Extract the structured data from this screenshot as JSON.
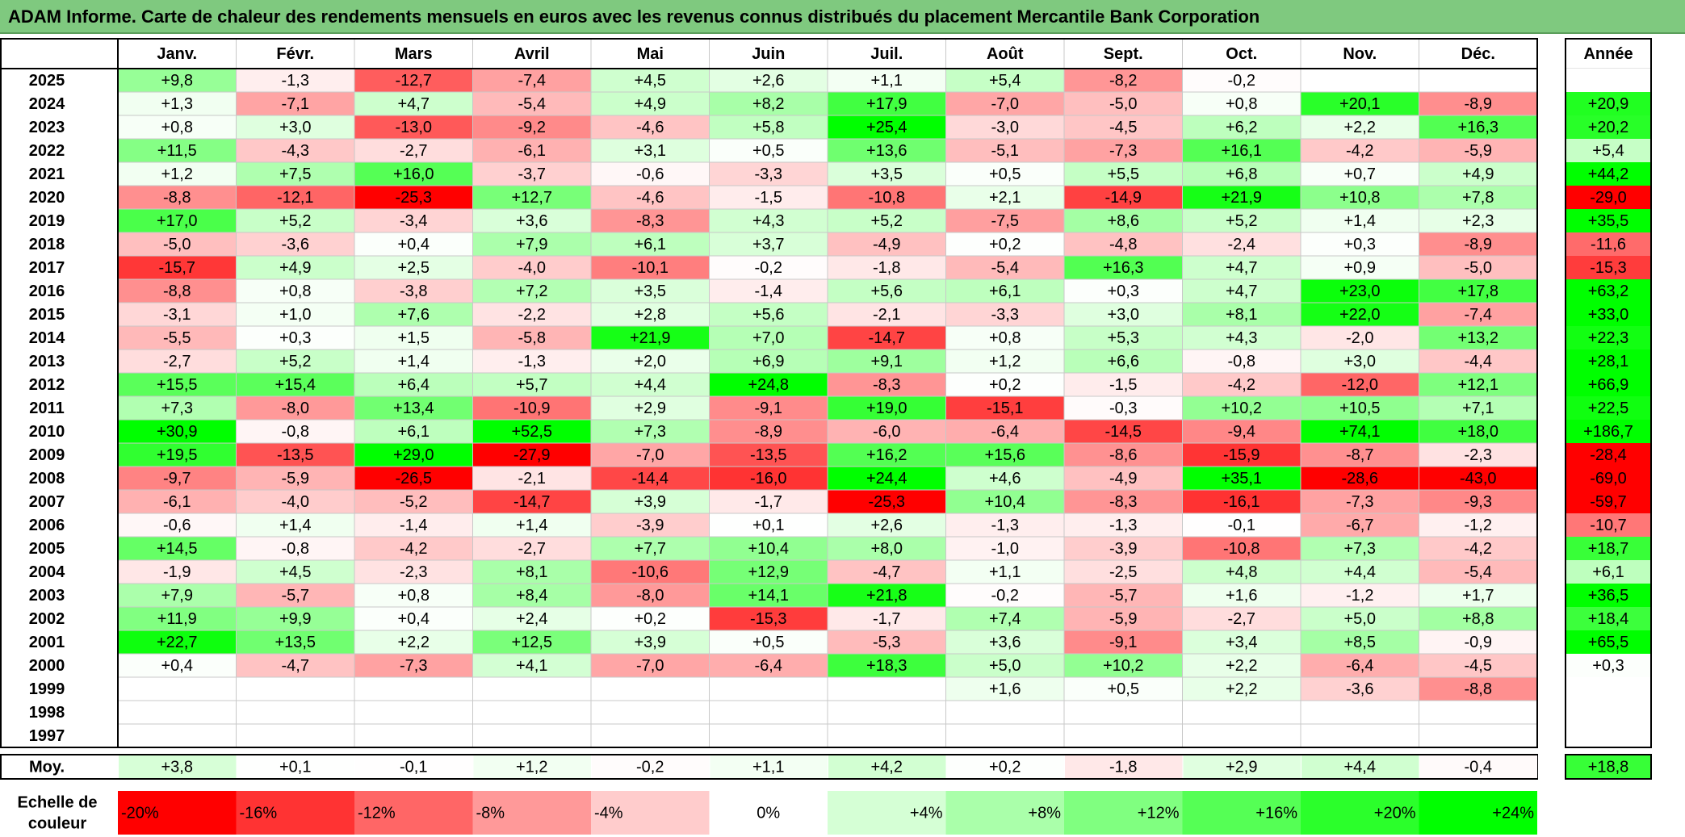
{
  "title": "ADAM Informe. Carte de chaleur des rendements mensuels en euros avec les revenus connus distribués du placement Mercantile Bank Corporation",
  "chart_data": {
    "type": "heatmap",
    "months": [
      "Janv.",
      "Févr.",
      "Mars",
      "Avril",
      "Mai",
      "Juin",
      "Juil.",
      "Août",
      "Sept.",
      "Oct.",
      "Nov.",
      "Déc."
    ],
    "annual_label": "Année",
    "years": [
      "2025",
      "2024",
      "2023",
      "2022",
      "2021",
      "2020",
      "2019",
      "2018",
      "2017",
      "2016",
      "2015",
      "2014",
      "2013",
      "2012",
      "2011",
      "2010",
      "2009",
      "2008",
      "2007",
      "2006",
      "2005",
      "2004",
      "2003",
      "2002",
      "2001",
      "2000",
      "1999",
      "1998",
      "1997"
    ],
    "values": [
      [
        "+9,8",
        "-1,3",
        "-12,7",
        "-7,4",
        "+4,5",
        "+2,6",
        "+1,1",
        "+5,4",
        "-8,2",
        "-0,2",
        "",
        ""
      ],
      [
        "+1,3",
        "-7,1",
        "+4,7",
        "-5,4",
        "+4,9",
        "+8,2",
        "+17,9",
        "-7,0",
        "-5,0",
        "+0,8",
        "+20,1",
        "-8,9"
      ],
      [
        "+0,8",
        "+3,0",
        "-13,0",
        "-9,2",
        "-4,6",
        "+5,8",
        "+25,4",
        "-3,0",
        "-4,5",
        "+6,2",
        "+2,2",
        "+16,3"
      ],
      [
        "+11,5",
        "-4,3",
        "-2,7",
        "-6,1",
        "+3,1",
        "+0,5",
        "+13,6",
        "-5,1",
        "-7,3",
        "+16,1",
        "-4,2",
        "-5,9"
      ],
      [
        "+1,2",
        "+7,5",
        "+16,0",
        "-3,7",
        "-0,6",
        "-3,3",
        "+3,5",
        "+0,5",
        "+5,5",
        "+6,8",
        "+0,7",
        "+4,9"
      ],
      [
        "-8,8",
        "-12,1",
        "-25,3",
        "+12,7",
        "-4,6",
        "-1,5",
        "-10,8",
        "+2,1",
        "-14,9",
        "+21,9",
        "+10,8",
        "+7,8"
      ],
      [
        "+17,0",
        "+5,2",
        "-3,4",
        "+3,6",
        "-8,3",
        "+4,3",
        "+5,2",
        "-7,5",
        "+8,6",
        "+5,2",
        "+1,4",
        "+2,3"
      ],
      [
        "-5,0",
        "-3,6",
        "+0,4",
        "+7,9",
        "+6,1",
        "+3,7",
        "-4,9",
        "+0,2",
        "-4,8",
        "-2,4",
        "+0,3",
        "-8,9"
      ],
      [
        "-15,7",
        "+4,9",
        "+2,5",
        "-4,0",
        "-10,1",
        "-0,2",
        "-1,8",
        "-5,4",
        "+16,3",
        "+4,7",
        "+0,9",
        "-5,0"
      ],
      [
        "-8,8",
        "+0,8",
        "-3,8",
        "+7,2",
        "+3,5",
        "-1,4",
        "+5,6",
        "+6,1",
        "+0,3",
        "+4,7",
        "+23,0",
        "+17,8"
      ],
      [
        "-3,1",
        "+1,0",
        "+7,6",
        "-2,2",
        "+2,8",
        "+5,6",
        "-2,1",
        "-3,3",
        "+3,0",
        "+8,1",
        "+22,0",
        "-7,4"
      ],
      [
        "-5,5",
        "+0,3",
        "+1,5",
        "-5,8",
        "+21,9",
        "+7,0",
        "-14,7",
        "+0,8",
        "+5,3",
        "+4,3",
        "-2,0",
        "+13,2"
      ],
      [
        "-2,7",
        "+5,2",
        "+1,4",
        "-1,3",
        "+2,0",
        "+6,9",
        "+9,1",
        "+1,2",
        "+6,6",
        "-0,8",
        "+3,0",
        "-4,4"
      ],
      [
        "+15,5",
        "+15,4",
        "+6,4",
        "+5,7",
        "+4,4",
        "+24,8",
        "-8,3",
        "+0,2",
        "-1,5",
        "-4,2",
        "-12,0",
        "+12,1"
      ],
      [
        "+7,3",
        "-8,0",
        "+13,4",
        "-10,9",
        "+2,9",
        "-9,1",
        "+19,0",
        "-15,1",
        "-0,3",
        "+10,2",
        "+10,5",
        "+7,1"
      ],
      [
        "+30,9",
        "-0,8",
        "+6,1",
        "+52,5",
        "+7,3",
        "-8,9",
        "-6,0",
        "-6,4",
        "-14,5",
        "-9,4",
        "+74,1",
        "+18,0"
      ],
      [
        "+19,5",
        "-13,5",
        "+29,0",
        "-27,9",
        "-7,0",
        "-13,5",
        "+16,2",
        "+15,6",
        "-8,6",
        "-15,9",
        "-8,7",
        "-2,3"
      ],
      [
        "-9,7",
        "-5,9",
        "-26,5",
        "-2,1",
        "-14,4",
        "-16,0",
        "+24,4",
        "+4,6",
        "-4,9",
        "+35,1",
        "-28,6",
        "-43,0"
      ],
      [
        "-6,1",
        "-4,0",
        "-5,2",
        "-14,7",
        "+3,9",
        "-1,7",
        "-25,3",
        "+10,4",
        "-8,3",
        "-16,1",
        "-7,3",
        "-9,3"
      ],
      [
        "-0,6",
        "+1,4",
        "-1,4",
        "+1,4",
        "-3,9",
        "+0,1",
        "+2,6",
        "-1,3",
        "-1,3",
        "-0,1",
        "-6,7",
        "-1,2"
      ],
      [
        "+14,5",
        "-0,8",
        "-4,2",
        "-2,7",
        "+7,7",
        "+10,4",
        "+8,0",
        "-1,0",
        "-3,9",
        "-10,8",
        "+7,3",
        "-4,2"
      ],
      [
        "-1,9",
        "+4,5",
        "-2,3",
        "+8,1",
        "-10,6",
        "+12,9",
        "-4,7",
        "+1,1",
        "-2,5",
        "+4,8",
        "+4,4",
        "-5,4"
      ],
      [
        "+7,9",
        "-5,7",
        "+0,8",
        "+8,4",
        "-8,0",
        "+14,1",
        "+21,8",
        "-0,2",
        "-5,7",
        "+1,6",
        "-1,2",
        "+1,7"
      ],
      [
        "+11,9",
        "+9,9",
        "+0,4",
        "+2,4",
        "+0,2",
        "-15,3",
        "-1,7",
        "+7,4",
        "-5,9",
        "-2,7",
        "+5,0",
        "+8,8"
      ],
      [
        "+22,7",
        "+13,5",
        "+2,2",
        "+12,5",
        "+3,9",
        "+0,5",
        "-5,3",
        "+3,6",
        "-9,1",
        "+3,4",
        "+8,5",
        "-0,9"
      ],
      [
        "+0,4",
        "-4,7",
        "-7,3",
        "+4,1",
        "-7,0",
        "-6,4",
        "+18,3",
        "+5,0",
        "+10,2",
        "+2,2",
        "-6,4",
        "-4,5"
      ],
      [
        "",
        "",
        "",
        "",
        "",
        "",
        "",
        "+1,6",
        "+0,5",
        "+2,2",
        "-3,6",
        "-8,8"
      ],
      [
        "",
        "",
        "",
        "",
        "",
        "",
        "",
        "",
        "",
        "",
        "",
        ""
      ],
      [
        "",
        "",
        "",
        "",
        "",
        "",
        "",
        "",
        "",
        "",
        "",
        ""
      ]
    ],
    "annual": [
      "",
      "+20,9",
      "+20,2",
      "+5,4",
      "+44,2",
      "-29,0",
      "+35,5",
      "-11,6",
      "-15,3",
      "+63,2",
      "+33,0",
      "+22,3",
      "+28,1",
      "+66,9",
      "+22,5",
      "+186,7",
      "-28,4",
      "-69,0",
      "-59,7",
      "-10,7",
      "+18,7",
      "+6,1",
      "+36,5",
      "+18,4",
      "+65,5",
      "+0,3",
      "",
      "",
      ""
    ],
    "average_label": "Moy.",
    "average": [
      "+3,8",
      "+0,1",
      "-0,1",
      "+1,2",
      "-0,2",
      "+1,1",
      "+4,2",
      "+0,2",
      "-1,8",
      "+2,9",
      "+4,4",
      "-0,4"
    ],
    "average_annual": "+18,8",
    "scale_label": [
      "Echelle de",
      "couleur"
    ],
    "scale": [
      {
        "label": "-20%",
        "value": -20
      },
      {
        "label": "-16%",
        "value": -16
      },
      {
        "label": "-12%",
        "value": -12
      },
      {
        "label": "-8%",
        "value": -8
      },
      {
        "label": "-4%",
        "value": -4
      },
      {
        "label": "0%",
        "value": 0
      },
      {
        "label": "+4%",
        "value": 4
      },
      {
        "label": "+8%",
        "value": 8
      },
      {
        "label": "+12%",
        "value": 12
      },
      {
        "label": "+16%",
        "value": 16
      },
      {
        "label": "+20%",
        "value": 20
      },
      {
        "label": "+24%",
        "value": 24
      }
    ],
    "colors": {
      "max_negative": "#ff0000",
      "max_positive": "#00ff00",
      "neutral": "#ffffff",
      "title_bg": "#7fc97f"
    },
    "color_range": [
      -20,
      24
    ]
  }
}
